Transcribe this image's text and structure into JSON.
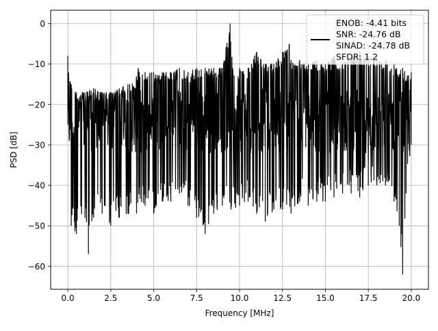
{
  "chart_data": {
    "type": "line",
    "title": "",
    "xlabel": "Frequency [MHz]",
    "ylabel": "PSD [dB]",
    "xlim": [
      -1.0,
      21.0
    ],
    "ylim": [
      -65.7,
      3.3
    ],
    "xticks": [
      0.0,
      2.5,
      5.0,
      7.5,
      10.0,
      12.5,
      15.0,
      17.5,
      20.0
    ],
    "xtick_labels": [
      "0.0",
      "2.5",
      "5.0",
      "7.5",
      "10.0",
      "12.5",
      "15.0",
      "17.5",
      "20.0"
    ],
    "yticks": [
      0,
      -10,
      -20,
      -30,
      -40,
      -50,
      -60
    ],
    "ytick_labels": [
      "0",
      "−10",
      "−20",
      "−30",
      "−40",
      "−50",
      "−60"
    ],
    "grid": true,
    "legend": {
      "placement": "top-right",
      "lines": [
        "ENOB: -4.41 bits",
        "SNR: -24.76 dB",
        "SINAD: -24.78 dB",
        "SFDR: 1.2"
      ]
    },
    "series": [
      {
        "color": "#000000",
        "x_start": 0.0,
        "x_end": 20.0,
        "upper_envelope": [
          [
            0.0,
            -8
          ],
          [
            0.2,
            -15
          ],
          [
            0.5,
            -17
          ],
          [
            1.0,
            -17
          ],
          [
            1.5,
            -16
          ],
          [
            2.0,
            -17
          ],
          [
            2.5,
            -17
          ],
          [
            3.0,
            -16
          ],
          [
            3.5,
            -15
          ],
          [
            4.0,
            -13
          ],
          [
            4.1,
            -11
          ],
          [
            4.5,
            -12
          ],
          [
            5.0,
            -12
          ],
          [
            5.5,
            -12
          ],
          [
            6.0,
            -12
          ],
          [
            6.5,
            -11
          ],
          [
            7.0,
            -12
          ],
          [
            7.5,
            -11
          ],
          [
            8.0,
            -11
          ],
          [
            8.5,
            -11
          ],
          [
            9.0,
            -11
          ],
          [
            9.45,
            0
          ],
          [
            9.6,
            -11
          ],
          [
            10.0,
            -11
          ],
          [
            10.5,
            -11
          ],
          [
            11.0,
            -7
          ],
          [
            11.5,
            -10
          ],
          [
            12.0,
            -10
          ],
          [
            12.5,
            -7
          ],
          [
            12.9,
            -5
          ],
          [
            13.0,
            -9
          ],
          [
            13.5,
            -9
          ],
          [
            14.0,
            -10
          ],
          [
            14.5,
            -9
          ],
          [
            15.0,
            -10
          ],
          [
            15.5,
            -8
          ],
          [
            16.0,
            -10
          ],
          [
            16.5,
            -8
          ],
          [
            17.0,
            -7
          ],
          [
            17.5,
            -8
          ],
          [
            18.0,
            -8
          ],
          [
            18.5,
            -9
          ],
          [
            19.0,
            -10
          ],
          [
            19.5,
            -11
          ],
          [
            20.0,
            -12
          ]
        ],
        "lower_envelope": [
          [
            0.0,
            -25
          ],
          [
            0.2,
            -50
          ],
          [
            0.5,
            -52
          ],
          [
            1.0,
            -48
          ],
          [
            1.2,
            -57
          ],
          [
            1.5,
            -48
          ],
          [
            2.0,
            -47
          ],
          [
            2.5,
            -50
          ],
          [
            3.0,
            -48
          ],
          [
            3.5,
            -47
          ],
          [
            4.0,
            -47
          ],
          [
            4.5,
            -45
          ],
          [
            5.0,
            -47
          ],
          [
            5.5,
            -44
          ],
          [
            6.0,
            -44
          ],
          [
            6.5,
            -42
          ],
          [
            7.0,
            -45
          ],
          [
            7.5,
            -48
          ],
          [
            8.0,
            -52
          ],
          [
            8.5,
            -47
          ],
          [
            9.0,
            -45
          ],
          [
            9.5,
            -46
          ],
          [
            10.0,
            -45
          ],
          [
            10.5,
            -44
          ],
          [
            11.0,
            -47
          ],
          [
            11.5,
            -49
          ],
          [
            12.0,
            -46
          ],
          [
            12.5,
            -46
          ],
          [
            13.0,
            -47
          ],
          [
            13.5,
            -44
          ],
          [
            14.0,
            -45
          ],
          [
            14.5,
            -44
          ],
          [
            15.0,
            -44
          ],
          [
            15.5,
            -43
          ],
          [
            16.0,
            -42
          ],
          [
            16.5,
            -42
          ],
          [
            17.0,
            -43
          ],
          [
            17.5,
            -40
          ],
          [
            18.0,
            -40
          ],
          [
            18.5,
            -40
          ],
          [
            19.0,
            -44
          ],
          [
            19.3,
            -50
          ],
          [
            19.5,
            -62
          ],
          [
            19.7,
            -42
          ],
          [
            20.0,
            -30
          ]
        ]
      }
    ]
  }
}
